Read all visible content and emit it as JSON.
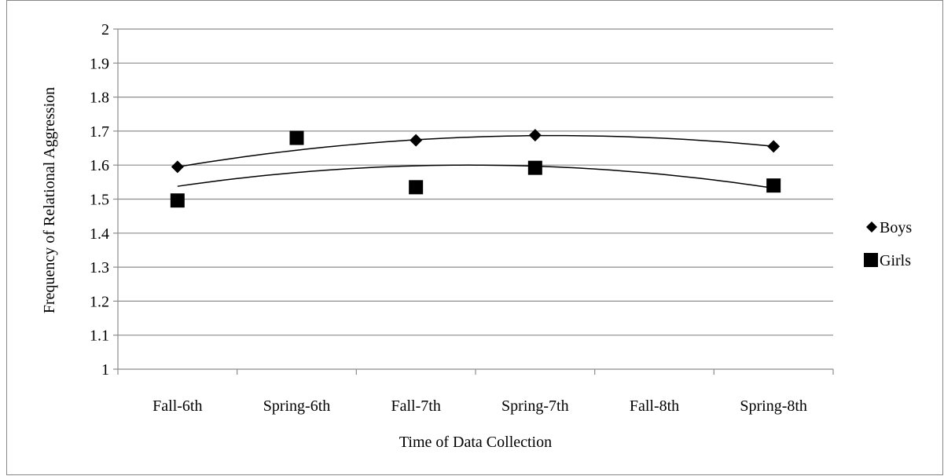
{
  "chart_data": {
    "type": "scatter",
    "title": "",
    "xlabel": "Time of Data Collection",
    "ylabel": "Frequency of Relational Aggression",
    "categories": [
      "Fall-6th",
      "Spring-6th",
      "Fall-7th",
      "Spring-7th",
      "Fall-8th",
      "Spring-8th"
    ],
    "ylim": [
      1,
      2
    ],
    "yticks": [
      "1",
      "1.1",
      "1.2",
      "1.3",
      "1.4",
      "1.5",
      "1.6",
      "1.7",
      "1.8",
      "1.9",
      "2"
    ],
    "grid": true,
    "legend_position": "right",
    "trendline": "polynomial",
    "series": [
      {
        "name": "Boys",
        "marker": "diamond",
        "color": "#000000",
        "values": [
          1.595,
          null,
          1.673,
          1.688,
          null,
          1.655
        ]
      },
      {
        "name": "Girls",
        "marker": "square",
        "color": "#000000",
        "values": [
          1.496,
          1.68,
          1.535,
          1.592,
          null,
          1.54
        ]
      }
    ]
  }
}
